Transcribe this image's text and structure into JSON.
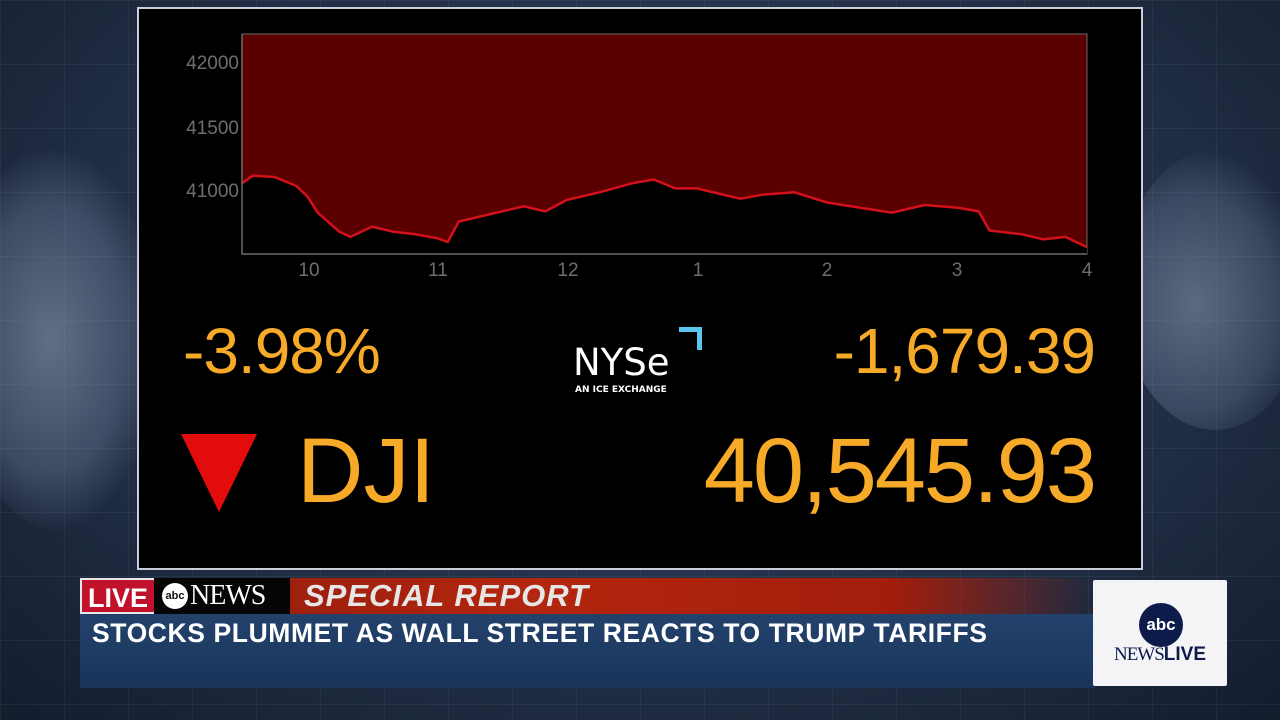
{
  "broadcast": {
    "network": "abc NEWS",
    "live_label": "LIVE",
    "abc_logo_text": "abc",
    "news_wordmark": "NEWS",
    "segment": "SPECIAL REPORT",
    "headline": "STOCKS PLUMMET AS WALL STREET REACTS TO TRUMP TARIFFS",
    "corner_bug": {
      "logo_text": "abc",
      "news": "NEWS",
      "live": "LIVE"
    }
  },
  "market": {
    "index": "DJI",
    "direction": "down",
    "percent_change": "-3.98%",
    "point_change": "-1,679.39",
    "last_price": "40,545.93",
    "exchange": {
      "name": "NYSe",
      "tagline": "AN ICE EXCHANGE"
    },
    "colors": {
      "value": "#f7a928",
      "down_arrow": "#e30c0c",
      "fill": "#5a0000",
      "line": "#d4101a",
      "nyse_accent": "#5ac6f0"
    }
  },
  "chart_data": {
    "type": "area",
    "title": "",
    "xlabel": "",
    "ylabel": "",
    "x_ticks": [
      "10",
      "11",
      "12",
      "1",
      "2",
      "3",
      "4"
    ],
    "y_ticks": [
      "42000",
      "41500",
      "41000"
    ],
    "ylim": [
      40500,
      42200
    ],
    "xlim": [
      "9:30",
      "4:00"
    ],
    "grid": false,
    "legend": null,
    "series": [
      {
        "name": "DJI intraday",
        "x": [
          "9:30",
          "9:35",
          "9:45",
          "9:55",
          "10:00",
          "10:05",
          "10:15",
          "10:20",
          "10:30",
          "10:40",
          "10:50",
          "11:00",
          "11:05",
          "11:10",
          "11:20",
          "11:30",
          "11:40",
          "11:50",
          "12:00",
          "12:15",
          "12:30",
          "12:40",
          "12:50",
          "1:00",
          "1:10",
          "1:20",
          "1:30",
          "1:45",
          "2:00",
          "2:15",
          "2:30",
          "2:45",
          "3:00",
          "3:10",
          "3:15",
          "3:30",
          "3:40",
          "3:50",
          "4:00"
        ],
        "values": [
          41060,
          41120,
          41110,
          41040,
          40960,
          40830,
          40680,
          40640,
          40720,
          40680,
          40660,
          40630,
          40600,
          40760,
          40800,
          40840,
          40880,
          40840,
          40930,
          40990,
          41060,
          41090,
          41020,
          41020,
          40980,
          40940,
          40970,
          40990,
          40910,
          40870,
          40830,
          40890,
          40870,
          40840,
          40690,
          40660,
          40620,
          40640,
          40560
        ]
      }
    ]
  }
}
